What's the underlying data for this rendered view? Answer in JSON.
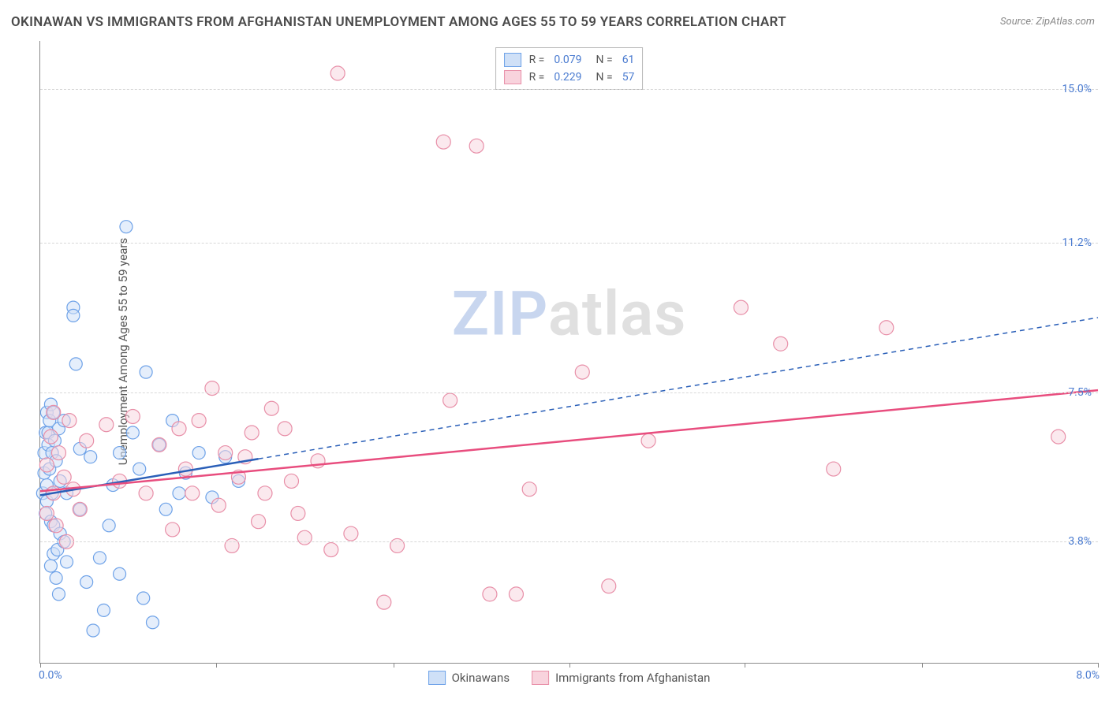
{
  "title": "OKINAWAN VS IMMIGRANTS FROM AFGHANISTAN UNEMPLOYMENT AMONG AGES 55 TO 59 YEARS CORRELATION CHART",
  "source": "Source: ZipAtlas.com",
  "ylabel": "Unemployment Among Ages 55 to 59 years",
  "watermark_a": "ZIP",
  "watermark_b": "atlas",
  "chart": {
    "type": "scatter-correlation",
    "background_color": "#ffffff",
    "grid_color": "#d8d8d8",
    "axis_color": "#8a8a8a",
    "tick_color": "#4a7bd0",
    "xlim": [
      0,
      8.0
    ],
    "ylim": [
      0.8,
      16.2
    ],
    "xticks": [
      {
        "pos": 0.0,
        "label": "0.0%"
      },
      {
        "pos": 8.0,
        "label": "8.0%"
      }
    ],
    "xtick_marks": [
      0,
      1.33,
      2.67,
      4.0,
      5.33,
      6.67,
      8.0
    ],
    "yticks": [
      {
        "pos": 3.8,
        "label": "3.8%"
      },
      {
        "pos": 7.5,
        "label": "7.5%"
      },
      {
        "pos": 11.2,
        "label": "11.2%"
      },
      {
        "pos": 15.0,
        "label": "15.0%"
      }
    ],
    "series": [
      {
        "key": "okinawans",
        "label": "Okinawans",
        "fill": "#cfe0f7",
        "stroke": "#6ea2e8",
        "line_color": "#2a5fb8",
        "marker_radius": 8,
        "fill_opacity": 0.55,
        "R": "0.079",
        "N": "61",
        "trend_solid": {
          "x1": 0.0,
          "y1": 4.95,
          "x2": 1.65,
          "y2": 5.85
        },
        "trend_dash": {
          "x1": 1.65,
          "y1": 5.85,
          "x2": 8.0,
          "y2": 9.35
        },
        "points": [
          [
            0.02,
            5.0
          ],
          [
            0.03,
            5.5
          ],
          [
            0.03,
            6.0
          ],
          [
            0.04,
            4.5
          ],
          [
            0.04,
            6.5
          ],
          [
            0.05,
            5.2
          ],
          [
            0.05,
            4.8
          ],
          [
            0.05,
            7.0
          ],
          [
            0.06,
            6.5
          ],
          [
            0.06,
            6.2
          ],
          [
            0.07,
            5.6
          ],
          [
            0.07,
            6.8
          ],
          [
            0.08,
            4.3
          ],
          [
            0.08,
            7.2
          ],
          [
            0.08,
            3.2
          ],
          [
            0.09,
            6.0
          ],
          [
            0.09,
            5.0
          ],
          [
            0.1,
            4.2
          ],
          [
            0.1,
            7.0
          ],
          [
            0.1,
            3.5
          ],
          [
            0.11,
            6.3
          ],
          [
            0.12,
            2.9
          ],
          [
            0.12,
            5.8
          ],
          [
            0.13,
            3.6
          ],
          [
            0.14,
            6.6
          ],
          [
            0.14,
            2.5
          ],
          [
            0.15,
            5.3
          ],
          [
            0.15,
            4.0
          ],
          [
            0.18,
            6.8
          ],
          [
            0.18,
            3.8
          ],
          [
            0.2,
            5.0
          ],
          [
            0.2,
            3.3
          ],
          [
            0.25,
            9.6
          ],
          [
            0.25,
            9.4
          ],
          [
            0.27,
            8.2
          ],
          [
            0.3,
            4.6
          ],
          [
            0.3,
            6.1
          ],
          [
            0.35,
            2.8
          ],
          [
            0.38,
            5.9
          ],
          [
            0.4,
            1.6
          ],
          [
            0.45,
            3.4
          ],
          [
            0.48,
            2.1
          ],
          [
            0.52,
            4.2
          ],
          [
            0.55,
            5.2
          ],
          [
            0.6,
            6.0
          ],
          [
            0.6,
            3.0
          ],
          [
            0.65,
            11.6
          ],
          [
            0.7,
            6.5
          ],
          [
            0.75,
            5.6
          ],
          [
            0.78,
            2.4
          ],
          [
            0.8,
            8.0
          ],
          [
            0.85,
            1.8
          ],
          [
            0.9,
            6.2
          ],
          [
            0.95,
            4.6
          ],
          [
            1.0,
            6.8
          ],
          [
            1.05,
            5.0
          ],
          [
            1.1,
            5.5
          ],
          [
            1.2,
            6.0
          ],
          [
            1.3,
            4.9
          ],
          [
            1.4,
            5.9
          ],
          [
            1.5,
            5.3
          ]
        ]
      },
      {
        "key": "afghan",
        "label": "Immigrants from Afghanistan",
        "fill": "#f8d3dd",
        "stroke": "#e88fa8",
        "line_color": "#e84d7e",
        "marker_radius": 9,
        "fill_opacity": 0.5,
        "R": "0.229",
        "N": "57",
        "trend_solid": {
          "x1": 0.0,
          "y1": 5.05,
          "x2": 8.0,
          "y2": 7.55
        },
        "trend_dash": null,
        "points": [
          [
            0.05,
            5.7
          ],
          [
            0.05,
            4.5
          ],
          [
            0.08,
            6.4
          ],
          [
            0.1,
            5.0
          ],
          [
            0.1,
            7.0
          ],
          [
            0.12,
            4.2
          ],
          [
            0.14,
            6.0
          ],
          [
            0.18,
            5.4
          ],
          [
            0.2,
            3.8
          ],
          [
            0.22,
            6.8
          ],
          [
            0.25,
            5.1
          ],
          [
            0.3,
            4.6
          ],
          [
            0.35,
            6.3
          ],
          [
            0.5,
            6.7
          ],
          [
            0.6,
            5.3
          ],
          [
            0.7,
            6.9
          ],
          [
            0.8,
            5.0
          ],
          [
            0.9,
            6.2
          ],
          [
            1.0,
            4.1
          ],
          [
            1.05,
            6.6
          ],
          [
            1.1,
            5.6
          ],
          [
            1.15,
            5.0
          ],
          [
            1.2,
            6.8
          ],
          [
            1.3,
            7.6
          ],
          [
            1.35,
            4.7
          ],
          [
            1.4,
            6.0
          ],
          [
            1.45,
            3.7
          ],
          [
            1.5,
            5.4
          ],
          [
            1.6,
            6.5
          ],
          [
            1.65,
            4.3
          ],
          [
            1.7,
            5.0
          ],
          [
            1.75,
            7.1
          ],
          [
            1.85,
            6.6
          ],
          [
            1.9,
            5.3
          ],
          [
            2.0,
            3.9
          ],
          [
            2.1,
            5.8
          ],
          [
            2.2,
            3.6
          ],
          [
            2.25,
            15.4
          ],
          [
            2.35,
            4.0
          ],
          [
            2.6,
            2.3
          ],
          [
            2.7,
            3.7
          ],
          [
            3.05,
            13.7
          ],
          [
            3.1,
            7.3
          ],
          [
            3.3,
            13.6
          ],
          [
            3.4,
            2.5
          ],
          [
            3.6,
            2.5
          ],
          [
            3.7,
            5.1
          ],
          [
            4.1,
            8.0
          ],
          [
            4.3,
            2.7
          ],
          [
            4.6,
            6.3
          ],
          [
            5.3,
            9.6
          ],
          [
            5.6,
            8.7
          ],
          [
            6.0,
            5.6
          ],
          [
            6.4,
            9.1
          ],
          [
            7.7,
            6.4
          ],
          [
            1.95,
            4.5
          ],
          [
            1.55,
            5.9
          ]
        ]
      }
    ]
  },
  "legend_top": {
    "R_label": "R =",
    "N_label": "N ="
  }
}
